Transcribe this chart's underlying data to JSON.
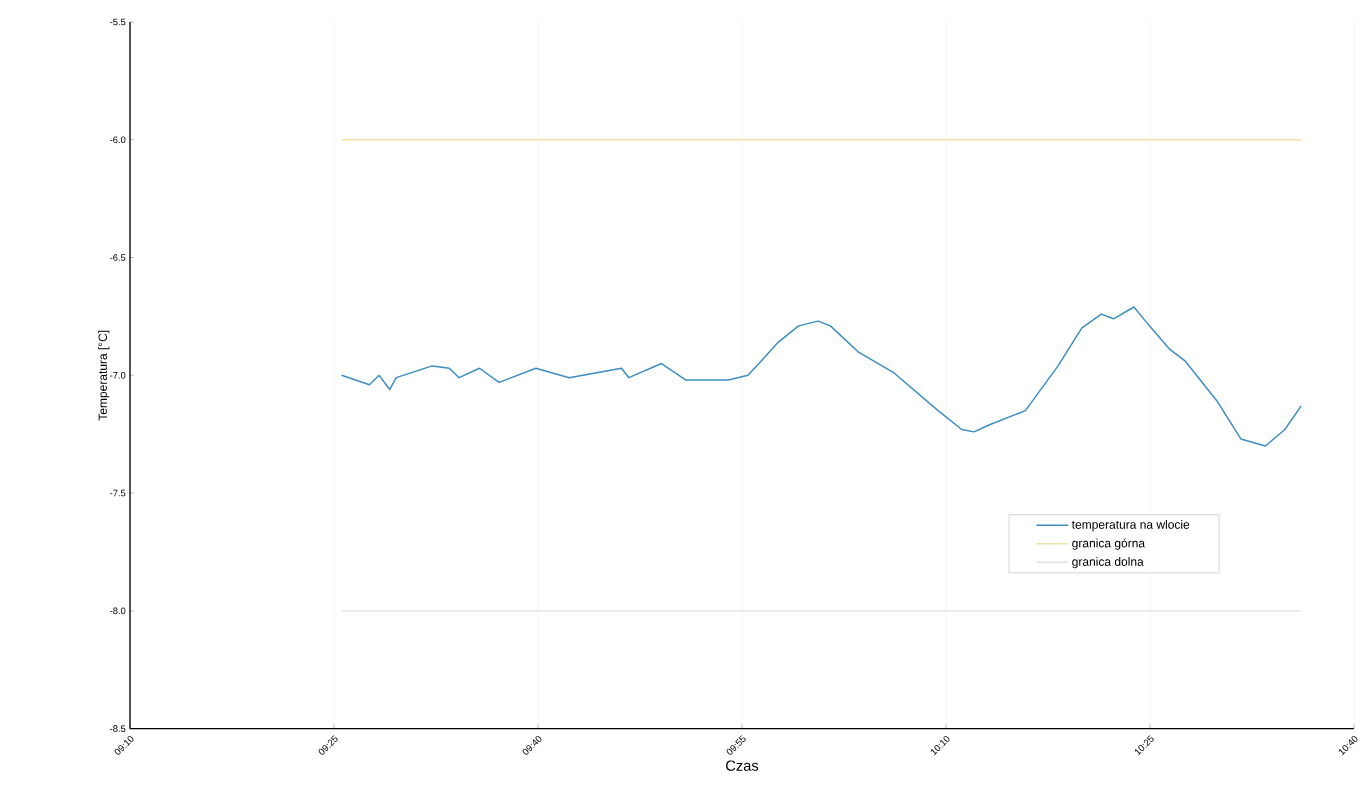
{
  "chart_data": {
    "type": "line",
    "xlabel": "Czas",
    "ylabel": "Temperatura [°C]",
    "xlim": [
      9.1667,
      10.6667
    ],
    "ylim": [
      -8.5,
      -5.5
    ],
    "xticks": [
      {
        "value": 9.1667,
        "label": "09:10"
      },
      {
        "value": 9.4167,
        "label": "09:25"
      },
      {
        "value": 9.6667,
        "label": "09:40"
      },
      {
        "value": 9.9167,
        "label": "09:55"
      },
      {
        "value": 10.1667,
        "label": "10:10"
      },
      {
        "value": 10.4167,
        "label": "10:25"
      },
      {
        "value": 10.6667,
        "label": "10:40"
      }
    ],
    "yticks": [
      {
        "value": -8.5,
        "label": "-8.5"
      },
      {
        "value": -8,
        "label": "-8.0"
      },
      {
        "value": -7.5,
        "label": "-7.5"
      },
      {
        "value": -7,
        "label": "-7.0"
      },
      {
        "value": -6.5,
        "label": "-6.5"
      },
      {
        "value": -6,
        "label": "-6.0"
      },
      {
        "value": -5.5,
        "label": "-5.5"
      }
    ],
    "grid": "x",
    "legend": "right",
    "series": [
      {
        "name": "temperatura na wlocie",
        "color": "#3c8dc0",
        "x": [
          9.426,
          9.46,
          9.472,
          9.485,
          9.493,
          9.537,
          9.558,
          9.57,
          9.595,
          9.619,
          9.664,
          9.705,
          9.769,
          9.778,
          9.818,
          9.848,
          9.9,
          9.924,
          9.94,
          9.961,
          9.986,
          10.01,
          10.025,
          10.059,
          10.103,
          10.157,
          10.186,
          10.201,
          10.22,
          10.264,
          10.304,
          10.333,
          10.357,
          10.372,
          10.397,
          10.416,
          10.441,
          10.46,
          10.499,
          10.528,
          10.558,
          10.582,
          10.602
        ],
        "values": [
          -7.0,
          -7.04,
          -7.0,
          -7.06,
          -7.01,
          -6.96,
          -6.97,
          -7.01,
          -6.97,
          -7.03,
          -6.97,
          -7.01,
          -6.97,
          -7.01,
          -6.95,
          -7.02,
          -7.02,
          -7.0,
          -6.94,
          -6.86,
          -6.79,
          -6.77,
          -6.79,
          -6.9,
          -6.99,
          -7.15,
          -7.23,
          -7.24,
          -7.21,
          -7.15,
          -6.96,
          -6.8,
          -6.74,
          -6.76,
          -6.71,
          -6.79,
          -6.89,
          -6.94,
          -7.11,
          -7.27,
          -7.3,
          -7.23,
          -7.13
        ]
      },
      {
        "name": "granica górna",
        "color": "#efe4a8",
        "x": [
          9.426,
          10.602
        ],
        "values": [
          -6,
          -6
        ]
      },
      {
        "name": "granica dolna",
        "color": "#e2e2e2",
        "x": [
          9.426,
          10.602
        ],
        "values": [
          -8,
          -8
        ]
      }
    ]
  }
}
